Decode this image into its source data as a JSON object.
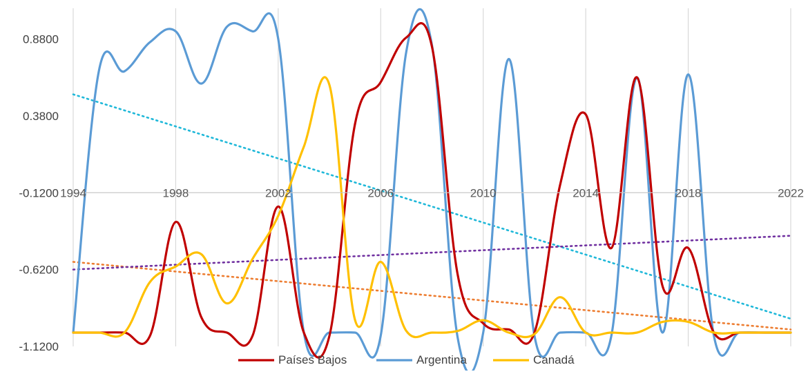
{
  "chart_data": {
    "type": "line",
    "title": "",
    "xlabel": "",
    "ylabel": "",
    "xlim": [
      1994,
      2022
    ],
    "ylim": [
      -1.12,
      1.08
    ],
    "x_ticks": [
      "1994",
      "1998",
      "2002",
      "2006",
      "2010",
      "2014",
      "2018",
      "2022"
    ],
    "y_ticks": [
      "0.8800",
      "0.3800",
      "-0.1200",
      "-0.6200",
      "-1.1200"
    ],
    "grid": "vertical",
    "legend_position": "bottom",
    "x": [
      1994,
      1995,
      1996,
      1997,
      1998,
      1999,
      2000,
      2001,
      2002,
      2003,
      2004,
      2005,
      2006,
      2007,
      2008,
      2009,
      2010,
      2011,
      2012,
      2013,
      2014,
      2015,
      2016,
      2017,
      2018,
      2019,
      2020,
      2021,
      2022
    ],
    "series": [
      {
        "name": "Países Bajos",
        "color": "#C00000",
        "values": [
          -1.03,
          -1.03,
          -1.03,
          -1.05,
          -0.31,
          -0.93,
          -1.03,
          -1.05,
          -0.21,
          -1.03,
          -1.05,
          0.33,
          0.6,
          0.89,
          0.83,
          -0.65,
          -0.97,
          -1.01,
          -1.03,
          -0.07,
          0.39,
          -0.48,
          0.63,
          -0.73,
          -0.48,
          -1.03,
          -1.03,
          -1.03,
          -1.03
        ]
      },
      {
        "name": "Argentina",
        "color": "#5B9BD5",
        "values": [
          -1.03,
          0.67,
          0.67,
          0.86,
          0.93,
          0.59,
          0.96,
          0.93,
          0.88,
          -1.03,
          -1.03,
          -1.03,
          -1.05,
          0.8,
          0.84,
          -1.06,
          -1.03,
          0.75,
          -1.05,
          -1.03,
          -1.03,
          -1.05,
          0.63,
          -1.03,
          0.65,
          -1.05,
          -1.03,
          -1.03,
          -1.03
        ]
      },
      {
        "name": "Canadá",
        "color": "#FFC000",
        "values": [
          -1.03,
          -1.03,
          -1.03,
          -0.7,
          -0.6,
          -0.52,
          -0.84,
          -0.55,
          -0.27,
          0.18,
          0.58,
          -0.95,
          -0.57,
          -1.02,
          -1.03,
          -1.02,
          -0.95,
          -1.03,
          -1.04,
          -0.8,
          -1.03,
          -1.03,
          -1.03,
          -0.96,
          -0.96,
          -1.03,
          -1.03,
          -1.03,
          -1.03
        ]
      }
    ],
    "trendlines": [
      {
        "series": "Argentina",
        "color": "#1FB8D9",
        "from": [
          1994,
          0.52
        ],
        "to": [
          2022,
          -0.94
        ]
      },
      {
        "series": "Países Bajos",
        "color": "#ED7D31",
        "from": [
          1994,
          -0.57
        ],
        "to": [
          2022,
          -1.01
        ]
      },
      {
        "series": "Canadá",
        "color": "#7030A0",
        "from": [
          1994,
          -0.62
        ],
        "to": [
          2022,
          -0.4
        ]
      }
    ]
  }
}
